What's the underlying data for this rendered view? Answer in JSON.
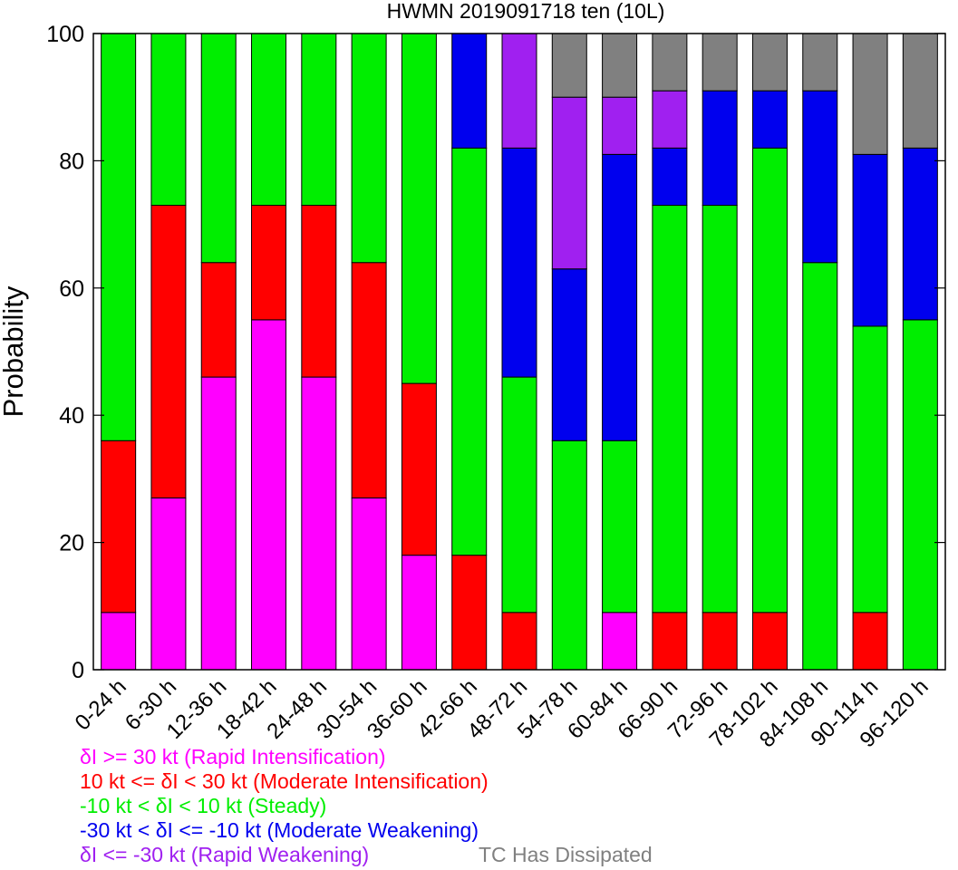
{
  "chart_data": {
    "type": "bar",
    "stacked": true,
    "title": "HWMN 2019091718 ten (10L)",
    "ylabel": "Probability",
    "xlabel": "",
    "ylim": [
      0,
      100
    ],
    "yticks": [
      0,
      20,
      40,
      60,
      80,
      100
    ],
    "grid": false,
    "legend_placement": "bottom",
    "categories": [
      "0-24 h",
      "6-30 h",
      "12-36 h",
      "18-42 h",
      "24-48 h",
      "30-54 h",
      "36-60 h",
      "42-66 h",
      "48-72 h",
      "54-78 h",
      "60-84 h",
      "66-90 h",
      "72-96 h",
      "78-102 h",
      "84-108 h",
      "90-114 h",
      "96-120 h"
    ],
    "series": [
      {
        "name": "δI >= 30 kt (Rapid Intensification)",
        "color": "#ff00ff",
        "values": [
          9,
          27,
          46,
          55,
          46,
          27,
          18,
          0,
          0,
          0,
          9,
          0,
          0,
          0,
          0,
          0,
          0
        ]
      },
      {
        "name": "10 kt <= δI < 30 kt (Moderate Intensification)",
        "color": "#ff0000",
        "values": [
          27,
          46,
          18,
          18,
          27,
          37,
          27,
          18,
          9,
          0,
          0,
          9,
          9,
          9,
          0,
          9,
          0
        ]
      },
      {
        "name": "-10 kt < δI < 10 kt (Steady)",
        "color": "#00ee00",
        "values": [
          64,
          27,
          36,
          27,
          27,
          36,
          55,
          64,
          37,
          36,
          27,
          64,
          64,
          73,
          64,
          45,
          55
        ]
      },
      {
        "name": "-30 kt < δI <= -10 kt (Moderate Weakening)",
        "color": "#0000ee",
        "values": [
          0,
          0,
          0,
          0,
          0,
          0,
          0,
          18,
          36,
          27,
          45,
          9,
          18,
          9,
          27,
          27,
          27
        ]
      },
      {
        "name": "δI <= -30 kt (Rapid Weakening)",
        "color": "#a020f0",
        "values": [
          0,
          0,
          0,
          0,
          0,
          0,
          0,
          0,
          18,
          27,
          9,
          9,
          0,
          0,
          0,
          0,
          0
        ]
      },
      {
        "name": "TC Has Dissipated",
        "color": "#808080",
        "values": [
          0,
          0,
          0,
          0,
          0,
          0,
          0,
          0,
          0,
          10,
          10,
          9,
          9,
          9,
          9,
          19,
          18
        ]
      }
    ]
  }
}
